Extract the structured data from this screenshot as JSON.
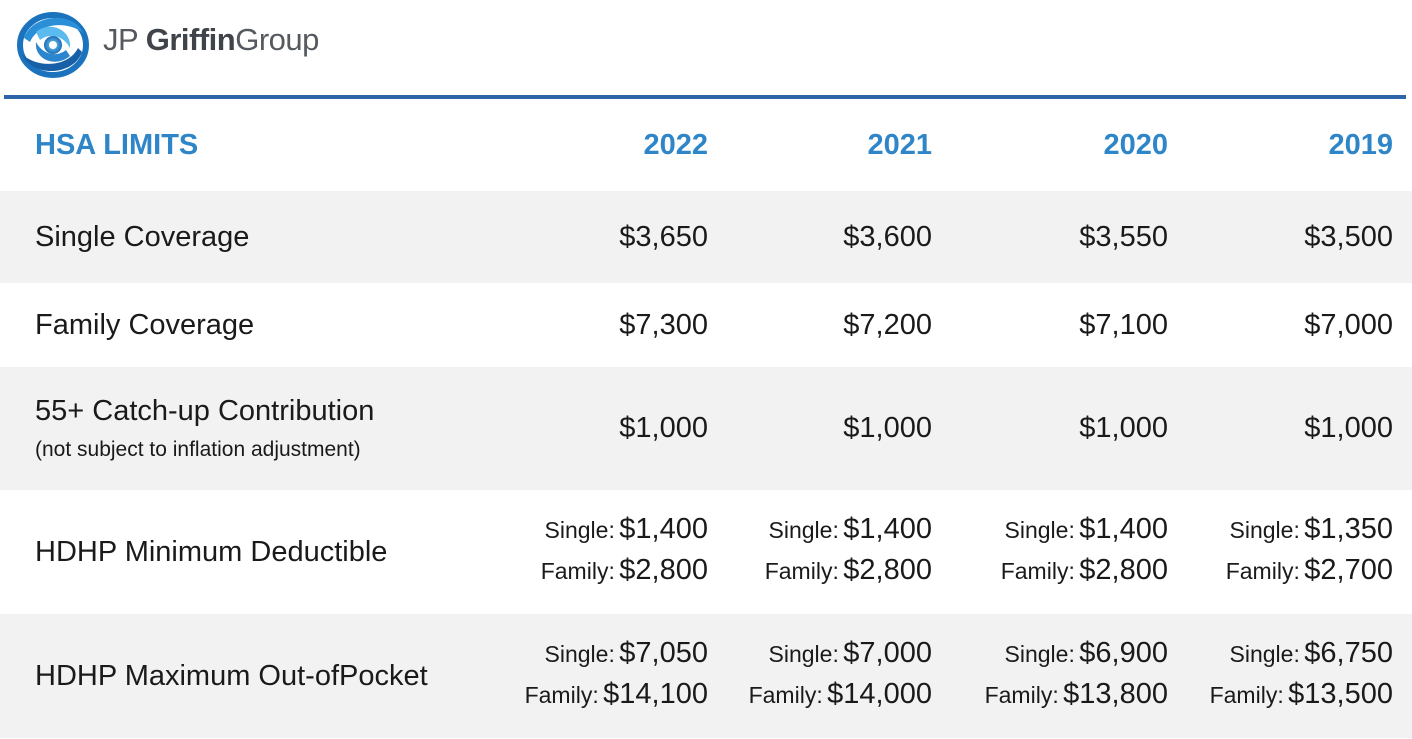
{
  "brand": {
    "name_part1": "JP",
    "name_part2": "Griffin",
    "name_part3": "Group",
    "logo_icon": "swirl-logo-icon",
    "colors": {
      "accent": "#2e86c9",
      "rule": "#2e65a8",
      "row_shade": "#f2f2f2"
    }
  },
  "table": {
    "headers": [
      "HSA LIMITS",
      "2022",
      "2021",
      "2020",
      "2019"
    ],
    "rows": [
      {
        "label": "Single Coverage",
        "values": [
          "$3,650",
          "$3,600",
          "$3,550",
          "$3,500"
        ]
      },
      {
        "label": "Family Coverage",
        "values": [
          "$7,300",
          "$7,200",
          "$7,100",
          "$7,000"
        ]
      },
      {
        "label": "55+ Catch-up Contribution",
        "sublabel": "(not subject to inflation adjustment)",
        "values": [
          "$1,000",
          "$1,000",
          "$1,000",
          "$1,000"
        ]
      },
      {
        "label": "HDHP Minimum Deductible",
        "pairs": [
          {
            "single_key": "Single:",
            "single": "$1,400",
            "family_key": "Family:",
            "family": "$2,800"
          },
          {
            "single_key": "Single:",
            "single": "$1,400",
            "family_key": "Family:",
            "family": "$2,800"
          },
          {
            "single_key": "Single:",
            "single": "$1,400",
            "family_key": "Family:",
            "family": "$2,800"
          },
          {
            "single_key": "Single:",
            "single": "$1,350",
            "family_key": "Family:",
            "family": "$2,700"
          }
        ]
      },
      {
        "label": "HDHP Maximum Out-ofPocket",
        "pairs": [
          {
            "single_key": "Single:",
            "single": "$7,050",
            "family_key": "Family:",
            "family": "$14,100"
          },
          {
            "single_key": "Single:",
            "single": "$7,000",
            "family_key": "Family:",
            "family": "$14,000"
          },
          {
            "single_key": "Single:",
            "single": "$6,900",
            "family_key": "Family:",
            "family": "$13,800"
          },
          {
            "single_key": "Single:",
            "single": "$6,750",
            "family_key": "Family:",
            "family": "$13,500"
          }
        ]
      }
    ]
  }
}
